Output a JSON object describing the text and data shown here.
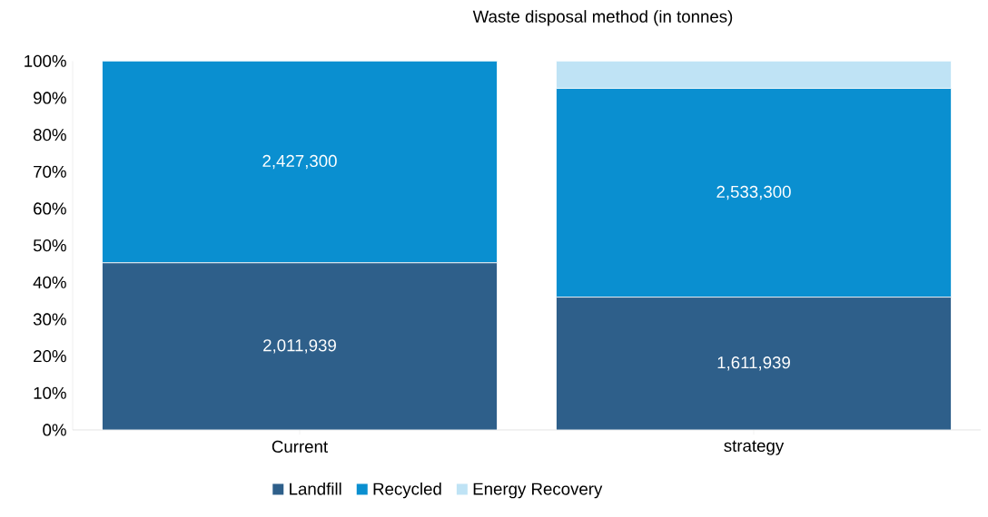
{
  "chart_data": {
    "type": "bar",
    "title": "Waste disposal method (in tonnes)",
    "stacked": true,
    "categories": [
      "Current",
      "strategy"
    ],
    "series": [
      {
        "name": "Landfill",
        "color": "#2e5f8a",
        "values": [
          45.3,
          36.0
        ]
      },
      {
        "name": "Recycled",
        "color": "#0a8fd0",
        "values": [
          54.7,
          56.6
        ]
      },
      {
        "name": "Energy Recovery",
        "color": "#bfe3f5",
        "values": [
          0,
          7.4
        ]
      }
    ],
    "annotations": [
      "2,011,939",
      "1,611,939",
      "2,427,300",
      "2,533,300"
    ],
    "ylim": [
      0,
      100
    ],
    "yticks": [
      {
        "value": 0,
        "label": "0%"
      },
      {
        "value": 10,
        "label": "10%"
      },
      {
        "value": 20,
        "label": "20%"
      },
      {
        "value": 30,
        "label": "30%"
      },
      {
        "value": 40,
        "label": "40%"
      },
      {
        "value": 50,
        "label": "50%"
      },
      {
        "value": 60,
        "label": "60%"
      },
      {
        "value": 70,
        "label": "70%"
      },
      {
        "value": 80,
        "label": "80%"
      },
      {
        "value": 90,
        "label": "90%"
      },
      {
        "value": 100,
        "label": "100%"
      }
    ],
    "legend": "bottom"
  }
}
